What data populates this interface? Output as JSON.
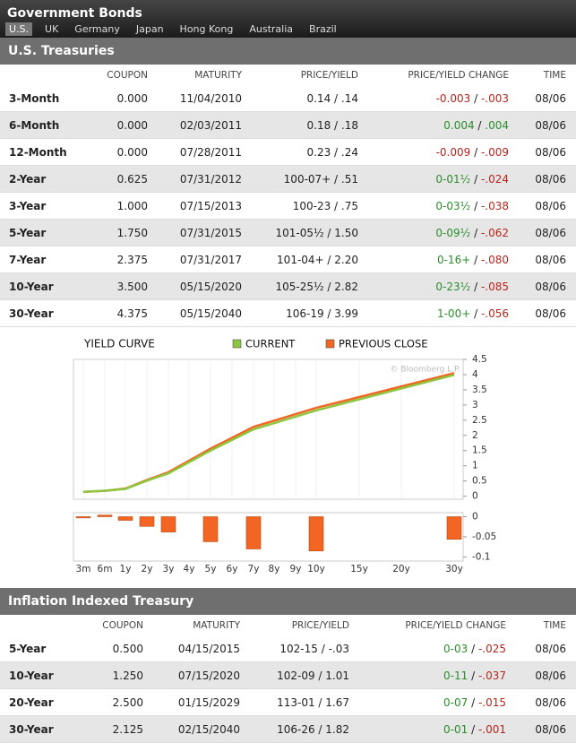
{
  "header": {
    "title": "Government Bonds",
    "tabs": [
      "U.S.",
      "UK",
      "Germany",
      "Japan",
      "Hong Kong",
      "Australia",
      "Brazil"
    ],
    "selected_tab": "U.S."
  },
  "treasuries": {
    "title": "U.S. Treasuries",
    "columns": [
      "COUPON",
      "MATURITY",
      "PRICE/YIELD",
      "PRICE/YIELD CHANGE",
      "TIME"
    ],
    "change_separator": " / ",
    "rows": [
      {
        "label": "3-Month",
        "coupon": "0.000",
        "maturity": "11/04/2010",
        "price_yield": "0.14 / .14",
        "price_change": "-0.003",
        "yield_change": "-.003",
        "time": "08/06"
      },
      {
        "label": "6-Month",
        "coupon": "0.000",
        "maturity": "02/03/2011",
        "price_yield": "0.18 / .18",
        "price_change": "0.004",
        "yield_change": ".004",
        "time": "08/06"
      },
      {
        "label": "12-Month",
        "coupon": "0.000",
        "maturity": "07/28/2011",
        "price_yield": "0.23 / .24",
        "price_change": "-0.009",
        "yield_change": "-.009",
        "time": "08/06"
      },
      {
        "label": "2-Year",
        "coupon": "0.625",
        "maturity": "07/31/2012",
        "price_yield": "100-07+ / .51",
        "price_change": "0-01½",
        "yield_change": "-.024",
        "time": "08/06"
      },
      {
        "label": "3-Year",
        "coupon": "1.000",
        "maturity": "07/15/2013",
        "price_yield": "100-23 / .75",
        "price_change": "0-03½",
        "yield_change": "-.038",
        "time": "08/06"
      },
      {
        "label": "5-Year",
        "coupon": "1.750",
        "maturity": "07/31/2015",
        "price_yield": "101-05½ / 1.50",
        "price_change": "0-09½",
        "yield_change": "-.062",
        "time": "08/06"
      },
      {
        "label": "7-Year",
        "coupon": "2.375",
        "maturity": "07/31/2017",
        "price_yield": "101-04+ / 2.20",
        "price_change": "0-16+",
        "yield_change": "-.080",
        "time": "08/06"
      },
      {
        "label": "10-Year",
        "coupon": "3.500",
        "maturity": "05/15/2020",
        "price_yield": "105-25½ / 2.82",
        "price_change": "0-23½",
        "yield_change": "-.085",
        "time": "08/06"
      },
      {
        "label": "30-Year",
        "coupon": "4.375",
        "maturity": "05/15/2040",
        "price_yield": "106-19 / 3.99",
        "price_change": "1-00+",
        "yield_change": "-.056",
        "time": "08/06"
      }
    ]
  },
  "chart_data": [
    {
      "type": "line",
      "title": "YIELD CURVE",
      "watermark": "© Bloomberg L.P.",
      "x": [
        "3m",
        "6m",
        "1y",
        "2y",
        "3y",
        "5y",
        "7y",
        "10y",
        "30y"
      ],
      "series": [
        {
          "name": "CURRENT",
          "color": "#8dc63f",
          "values": [
            0.14,
            0.18,
            0.24,
            0.51,
            0.75,
            1.5,
            2.2,
            2.82,
            3.99
          ]
        },
        {
          "name": "PREVIOUS CLOSE",
          "color": "#f26522",
          "values": [
            0.143,
            0.176,
            0.249,
            0.534,
            0.788,
            1.562,
            2.28,
            2.905,
            4.046
          ]
        }
      ],
      "ylim": [
        -0.1,
        4.5
      ],
      "yticks": [
        0,
        0.5,
        1,
        1.5,
        2,
        2.5,
        3,
        3.5,
        4,
        4.5
      ],
      "legend": "top"
    },
    {
      "type": "bar",
      "categories": [
        "3m",
        "6m",
        "1y",
        "2y",
        "3y",
        "4y",
        "5y",
        "6y",
        "7y",
        "8y",
        "9y",
        "10y",
        "15y",
        "20y",
        "30y"
      ],
      "x": [
        "3m",
        "6m",
        "1y",
        "2y",
        "3y",
        "5y",
        "7y",
        "10y",
        "30y"
      ],
      "values": [
        -0.003,
        0.004,
        -0.009,
        -0.024,
        -0.038,
        -0.062,
        -0.08,
        -0.085,
        -0.056
      ],
      "color": "#f26522",
      "ylim": [
        -0.11,
        0.01
      ],
      "yticks": [
        0,
        -0.05,
        -0.1
      ]
    }
  ],
  "inflation": {
    "title": "Inflation Indexed Treasury",
    "columns": [
      "COUPON",
      "MATURITY",
      "PRICE/YIELD",
      "PRICE/YIELD CHANGE",
      "TIME"
    ],
    "change_separator": " / ",
    "rows": [
      {
        "label": "5-Year",
        "coupon": "0.500",
        "maturity": "04/15/2015",
        "price_yield": "102-15 / -.03",
        "price_change": "0-03",
        "yield_change": "-.025",
        "time": "08/06"
      },
      {
        "label": "10-Year",
        "coupon": "1.250",
        "maturity": "07/15/2020",
        "price_yield": "102-09 / 1.01",
        "price_change": "0-11",
        "yield_change": "-.037",
        "time": "08/06"
      },
      {
        "label": "20-Year",
        "coupon": "2.500",
        "maturity": "01/15/2029",
        "price_yield": "113-01 / 1.67",
        "price_change": "0-07",
        "yield_change": "-.015",
        "time": "08/06"
      },
      {
        "label": "30-Year",
        "coupon": "2.125",
        "maturity": "02/15/2040",
        "price_yield": "106-26 / 1.82",
        "price_change": "0-01",
        "yield_change": "-.001",
        "time": "08/06"
      }
    ]
  }
}
